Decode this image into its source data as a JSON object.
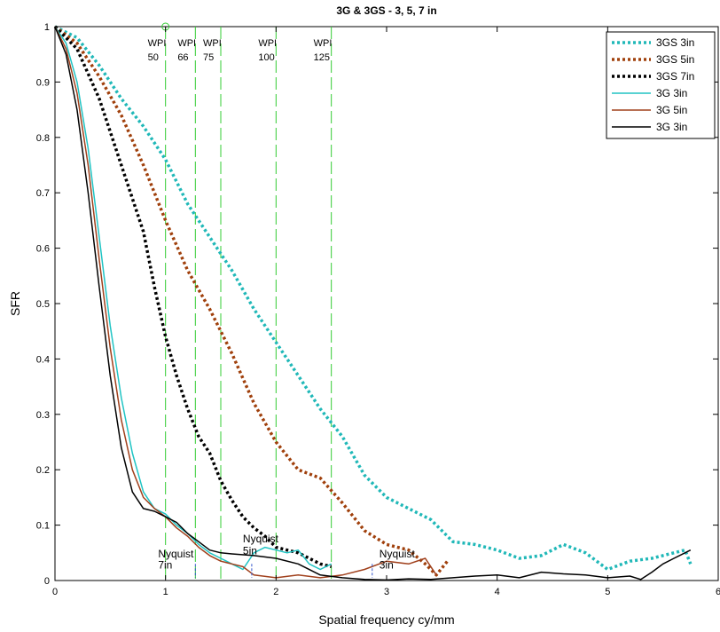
{
  "chart_data": {
    "type": "line",
    "title": "3G & 3GS - 3, 5, 7 in",
    "xlabel": "Spatial frequency cy/mm",
    "ylabel": "SFR",
    "xlim": [
      0,
      6
    ],
    "ylim": [
      0,
      1
    ],
    "xticks": [
      0,
      1,
      2,
      3,
      4,
      5,
      6
    ],
    "xtick_labels": [
      "0",
      "1",
      "2",
      "3",
      "4",
      "5",
      "6"
    ],
    "yticks": [
      0,
      0.1,
      0.2,
      0.3,
      0.4,
      0.5,
      0.6,
      0.7,
      0.8,
      0.9,
      1
    ],
    "ytick_labels": [
      "0",
      "0.1",
      "0.2",
      "0.3",
      "0.4",
      "0.5",
      "0.6",
      "0.7",
      "0.8",
      "0.9",
      "1"
    ],
    "grid": false,
    "legend_position": "top-right",
    "series": [
      {
        "name": "3GS 3in",
        "color": "#20b8b8",
        "style": "dotted",
        "width": 3.5,
        "x": [
          0,
          0.2,
          0.4,
          0.6,
          0.8,
          1.0,
          1.2,
          1.4,
          1.6,
          1.8,
          2.0,
          2.2,
          2.4,
          2.6,
          2.8,
          3.0,
          3.2,
          3.4,
          3.6,
          3.8,
          4.0,
          4.2,
          4.4,
          4.6,
          4.8,
          5.0,
          5.2,
          5.4,
          5.6,
          5.7,
          5.75
        ],
        "y": [
          1.0,
          0.98,
          0.93,
          0.87,
          0.82,
          0.76,
          0.68,
          0.62,
          0.56,
          0.49,
          0.43,
          0.37,
          0.31,
          0.26,
          0.19,
          0.15,
          0.13,
          0.11,
          0.07,
          0.065,
          0.055,
          0.04,
          0.045,
          0.065,
          0.05,
          0.02,
          0.035,
          0.04,
          0.05,
          0.055,
          0.03
        ]
      },
      {
        "name": "3GS 5in",
        "color": "#a0400c",
        "style": "dotted",
        "width": 3.5,
        "x": [
          0,
          0.2,
          0.4,
          0.6,
          0.8,
          1.0,
          1.2,
          1.4,
          1.6,
          1.8,
          2.0,
          2.2,
          2.4,
          2.6,
          2.8,
          3.0,
          3.2,
          3.35,
          3.45,
          3.55
        ],
        "y": [
          1.0,
          0.97,
          0.91,
          0.84,
          0.75,
          0.65,
          0.56,
          0.49,
          0.41,
          0.32,
          0.25,
          0.2,
          0.185,
          0.14,
          0.09,
          0.065,
          0.055,
          0.03,
          0.01,
          0.035
        ]
      },
      {
        "name": "3GS 7in",
        "color": "#000000",
        "style": "dotted",
        "width": 3.5,
        "x": [
          0,
          0.2,
          0.4,
          0.6,
          0.8,
          0.9,
          1.0,
          1.1,
          1.2,
          1.3,
          1.4,
          1.5,
          1.6,
          1.7,
          1.8,
          1.9,
          2.0,
          2.1,
          2.2,
          2.3,
          2.4,
          2.5
        ],
        "y": [
          1.0,
          0.96,
          0.87,
          0.75,
          0.63,
          0.53,
          0.44,
          0.37,
          0.31,
          0.26,
          0.23,
          0.18,
          0.145,
          0.115,
          0.095,
          0.08,
          0.06,
          0.055,
          0.05,
          0.04,
          0.03,
          0.025
        ]
      },
      {
        "name": "3G 3in",
        "color": "#20c4c4",
        "style": "solid",
        "width": 1.5,
        "x": [
          0,
          0.1,
          0.2,
          0.3,
          0.4,
          0.5,
          0.6,
          0.7,
          0.8,
          0.9,
          1.0,
          1.1,
          1.2,
          1.3,
          1.4,
          1.5,
          1.6,
          1.7,
          1.8,
          1.9,
          2.0,
          2.1,
          2.2,
          2.3,
          2.4,
          2.5
        ],
        "y": [
          1.0,
          0.97,
          0.9,
          0.78,
          0.62,
          0.46,
          0.33,
          0.23,
          0.16,
          0.13,
          0.12,
          0.1,
          0.085,
          0.065,
          0.05,
          0.04,
          0.03,
          0.02,
          0.05,
          0.06,
          0.055,
          0.05,
          0.055,
          0.03,
          0.02,
          0.03
        ]
      },
      {
        "name": "3G 5in",
        "color": "#a0401c",
        "style": "solid",
        "width": 1.5,
        "x": [
          0,
          0.1,
          0.2,
          0.3,
          0.4,
          0.5,
          0.6,
          0.7,
          0.8,
          0.9,
          1.0,
          1.1,
          1.2,
          1.3,
          1.4,
          1.5,
          1.6,
          1.7,
          1.8,
          2.0,
          2.2,
          2.4,
          2.6,
          2.8,
          3.0,
          3.2,
          3.35,
          3.45
        ],
        "y": [
          1.0,
          0.96,
          0.88,
          0.75,
          0.58,
          0.42,
          0.29,
          0.2,
          0.15,
          0.13,
          0.115,
          0.095,
          0.08,
          0.06,
          0.045,
          0.035,
          0.03,
          0.025,
          0.01,
          0.005,
          0.01,
          0.005,
          0.01,
          0.02,
          0.035,
          0.03,
          0.04,
          0.01
        ]
      },
      {
        "name": "3G 3in",
        "color": "#000000",
        "style": "solid",
        "width": 1.5,
        "x": [
          0,
          0.1,
          0.2,
          0.3,
          0.4,
          0.5,
          0.6,
          0.7,
          0.8,
          0.9,
          1.0,
          1.1,
          1.2,
          1.3,
          1.4,
          1.5,
          1.6,
          1.8,
          2.0,
          2.2,
          2.4,
          2.6,
          2.8,
          3.0,
          3.2,
          3.4,
          3.6,
          3.8,
          4.0,
          4.2,
          4.4,
          4.6,
          4.8,
          5.0,
          5.2,
          5.3,
          5.4,
          5.5,
          5.6,
          5.75
        ],
        "y": [
          1.0,
          0.95,
          0.85,
          0.7,
          0.53,
          0.37,
          0.24,
          0.16,
          0.13,
          0.125,
          0.115,
          0.105,
          0.085,
          0.07,
          0.055,
          0.05,
          0.048,
          0.045,
          0.04,
          0.03,
          0.01,
          0.005,
          0.002,
          0.001,
          0.003,
          0.002,
          0.005,
          0.008,
          0.01,
          0.005,
          0.015,
          0.012,
          0.01,
          0.005,
          0.008,
          0.002,
          0.015,
          0.03,
          0.04,
          0.055
        ]
      }
    ],
    "wpi_lines": {
      "color": "#33cc33",
      "x": [
        1.0,
        1.27,
        1.5,
        2.0,
        2.5
      ],
      "labels_top": [
        "WPI",
        "WPI",
        "WPI",
        "WPI",
        "WPI"
      ],
      "labels_bottom": [
        "50",
        "66",
        "75",
        "100",
        "125"
      ]
    },
    "nyquist_markers": {
      "color": "#3355cc",
      "x": [
        1.27,
        1.78,
        2.87
      ],
      "labels_top": [
        "Nyquist",
        "Nyquist",
        "Nyquist"
      ],
      "labels_bottom": [
        "7in",
        "5in",
        "3in"
      ]
    }
  }
}
